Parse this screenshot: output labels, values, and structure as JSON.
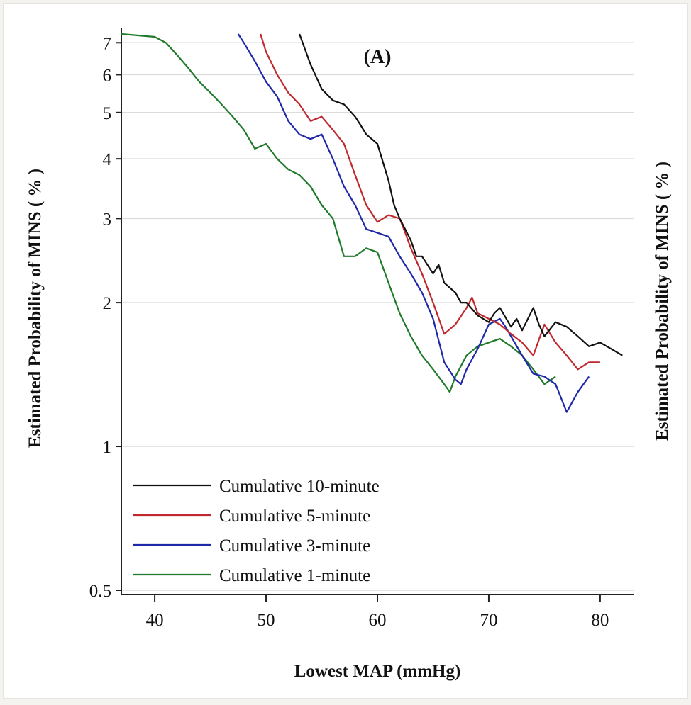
{
  "chart_data": {
    "type": "line",
    "panel_label": "(A)",
    "xlabel": "Lowest MAP (mmHg)",
    "ylabel": "Estimated Probability of MINS ( % )",
    "ylabel_right": "Estimated Probability of MINS ( % )",
    "yscale": "log",
    "xlim": [
      37,
      83
    ],
    "ylim": [
      0.5,
      7.3
    ],
    "xticks": [
      40,
      50,
      60,
      70,
      80
    ],
    "xtick_labels": [
      "40",
      "50",
      "60",
      "70",
      "80"
    ],
    "yticks": [
      0.5,
      1,
      2,
      3,
      4,
      5,
      6,
      7
    ],
    "ytick_labels": [
      "0.5",
      "1",
      "2",
      "3",
      "4",
      "5",
      "6",
      "7"
    ],
    "grid": "horizontal",
    "legend_position": "bottom-left",
    "colors": {
      "10min": "#111111",
      "5min": "#c0282d",
      "3min": "#1f28a8",
      "1min": "#1f7a2a"
    },
    "series": [
      {
        "name": "Cumulative 10-minute",
        "color": "#111111",
        "x": [
          53,
          54,
          55,
          56,
          57,
          58,
          58.5,
          59,
          60,
          61,
          61.5,
          62,
          63,
          63.5,
          64,
          65,
          65.5,
          66,
          67,
          67.5,
          68,
          69,
          70,
          70.5,
          71,
          72,
          72.5,
          73,
          74,
          74.5,
          75,
          76,
          77,
          78,
          79,
          80,
          81,
          82
        ],
        "y": [
          7.3,
          6.3,
          5.6,
          5.3,
          5.2,
          4.9,
          4.7,
          4.5,
          4.3,
          3.6,
          3.2,
          3.0,
          2.7,
          2.5,
          2.5,
          2.3,
          2.4,
          2.2,
          2.1,
          2.0,
          2.0,
          1.88,
          1.82,
          1.9,
          1.95,
          1.78,
          1.85,
          1.75,
          1.95,
          1.8,
          1.7,
          1.82,
          1.78,
          1.7,
          1.62,
          1.65,
          1.6,
          1.55
        ]
      },
      {
        "name": "Cumulative 5-minute",
        "color": "#c0282d",
        "x": [
          49.5,
          50,
          51,
          52,
          53,
          54,
          55,
          56,
          57,
          58,
          59,
          60,
          61,
          62,
          62.5,
          63,
          64,
          65,
          66,
          67,
          68,
          68.5,
          69,
          70,
          71,
          72,
          73,
          74,
          75,
          76,
          77,
          78,
          79,
          80
        ],
        "y": [
          7.3,
          6.7,
          6.0,
          5.5,
          5.2,
          4.8,
          4.9,
          4.6,
          4.3,
          3.7,
          3.2,
          2.95,
          3.05,
          3.0,
          2.8,
          2.6,
          2.3,
          2.0,
          1.72,
          1.8,
          1.95,
          2.05,
          1.9,
          1.85,
          1.8,
          1.72,
          1.65,
          1.55,
          1.8,
          1.65,
          1.55,
          1.45,
          1.5,
          1.5
        ]
      },
      {
        "name": "Cumulative 3-minute",
        "color": "#1f28a8",
        "x": [
          47.5,
          48,
          49,
          50,
          51,
          52,
          53,
          54,
          55,
          56,
          57,
          58,
          59,
          60,
          61,
          62,
          63,
          64,
          65,
          66,
          67,
          67.5,
          68,
          69,
          70,
          71,
          71.5,
          72,
          73,
          74,
          75,
          76,
          77,
          78,
          79
        ],
        "y": [
          7.3,
          7.0,
          6.4,
          5.8,
          5.4,
          4.8,
          4.5,
          4.4,
          4.5,
          4.0,
          3.5,
          3.2,
          2.85,
          2.8,
          2.75,
          2.5,
          2.3,
          2.1,
          1.85,
          1.5,
          1.38,
          1.35,
          1.45,
          1.6,
          1.8,
          1.85,
          1.78,
          1.7,
          1.55,
          1.42,
          1.4,
          1.35,
          1.18,
          1.3,
          1.4
        ]
      },
      {
        "name": "Cumulative 1-minute",
        "color": "#1f7a2a",
        "x": [
          37,
          40,
          41,
          42,
          43,
          44,
          45,
          46,
          47,
          48,
          49,
          50,
          51,
          52,
          53,
          54,
          55,
          56,
          57,
          58,
          59,
          60,
          61,
          62,
          63,
          64,
          65,
          66,
          66.5,
          67,
          68,
          69,
          70,
          71,
          72,
          73,
          74,
          75,
          76
        ],
        "y": [
          7.3,
          7.2,
          7.0,
          6.6,
          6.2,
          5.8,
          5.5,
          5.2,
          4.9,
          4.6,
          4.2,
          4.3,
          4.0,
          3.8,
          3.7,
          3.5,
          3.2,
          3.0,
          2.5,
          2.5,
          2.6,
          2.55,
          2.2,
          1.9,
          1.7,
          1.55,
          1.45,
          1.35,
          1.3,
          1.4,
          1.55,
          1.62,
          1.65,
          1.68,
          1.62,
          1.55,
          1.45,
          1.35,
          1.4
        ]
      }
    ]
  }
}
